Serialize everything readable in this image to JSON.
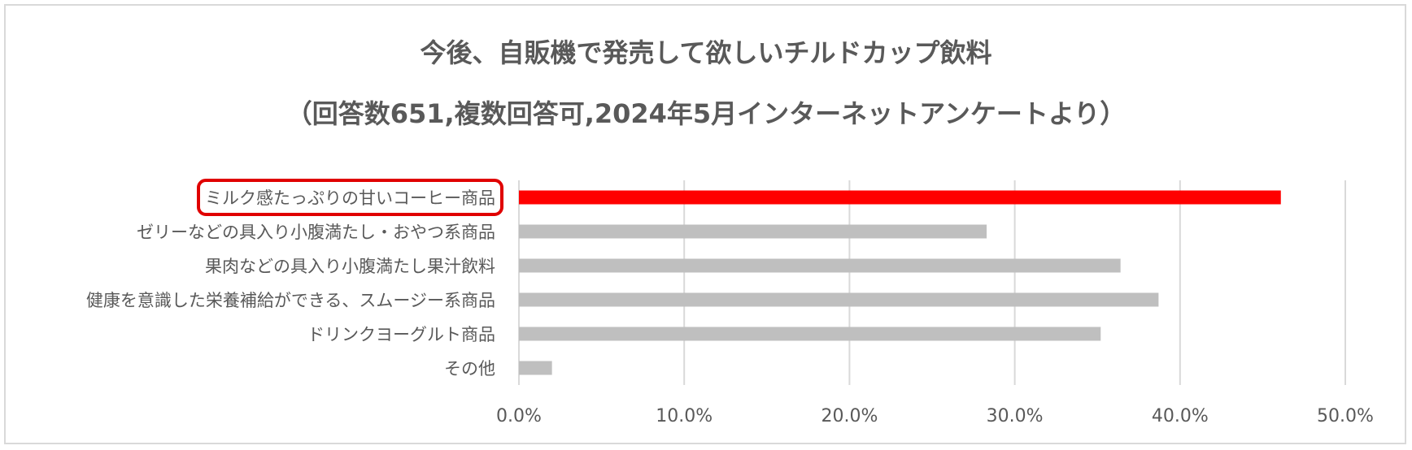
{
  "chart_data": {
    "type": "bar",
    "orientation": "horizontal",
    "title": "今後、自販機で発売して欲しいチルドカップ飲料",
    "subtitle": "（回答数651,複数回答可,2024年5月インターネットアンケートより）",
    "categories": [
      "ミルク感たっぷりの甘いコーヒー商品",
      "ゼリーなどの具入り小腹満たし・おやつ系商品",
      "果肉などの具入り小腹満たし果汁飲料",
      "健康を意識した栄養補給ができる、スムージー系商品",
      "ドリンクヨーグルト商品",
      "その他"
    ],
    "values": [
      46.1,
      28.3,
      36.4,
      38.7,
      35.2,
      2.0
    ],
    "highlighted_category": "ミルク感たっぷりの甘いコーヒー商品",
    "xlim": [
      0,
      50
    ],
    "x_ticks": [
      "0.0%",
      "10.0%",
      "20.0%",
      "30.0%",
      "40.0%",
      "50.0%"
    ],
    "grid": true,
    "colors": {
      "highlight": "#ff0000",
      "default": "#bfbfbf",
      "highlight_box": "#e00000",
      "grid": "#d9d9d9",
      "text": "#595959"
    }
  }
}
